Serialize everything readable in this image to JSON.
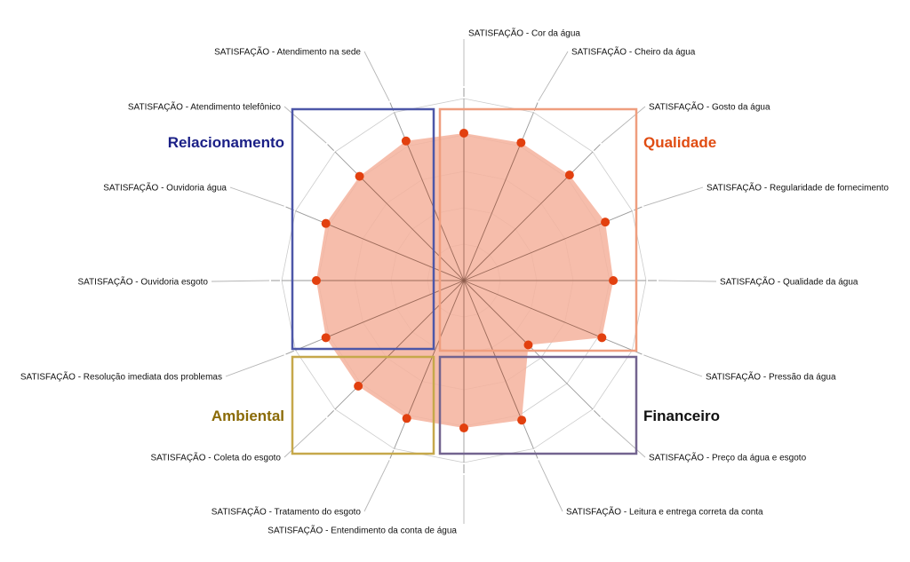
{
  "chart_data": {
    "type": "radar",
    "title": "",
    "rlim": [
      0,
      10
    ],
    "grid_rings": 5,
    "categories": [
      "SATISFAÇÃO - Cor da água",
      "SATISFAÇÃO - Cheiro da água",
      "SATISFAÇÃO - Gosto da água",
      "SATISFAÇÃO - Regularidade de fornecimento",
      "SATISFAÇÃO - Qualidade da água",
      "SATISFAÇÃO - Pressão da água",
      "SATISFAÇÃO - Preço da água e esgoto",
      "SATISFAÇÃO - Leitura e entrega correta da conta",
      "SATISFAÇÃO - Entendimento da conta de água",
      "SATISFAÇÃO - Tratamento do esgoto",
      "SATISFAÇÃO - Coleta do esgoto",
      "SATISFAÇÃO - Resolução imediata dos problemas",
      "SATISFAÇÃO - Ouvidoria esgoto",
      "SATISFAÇÃO - Ouvidoria água",
      "SATISFAÇÃO - Atendimento telefônico",
      "SATISFAÇÃO - Atendimento na sede"
    ],
    "values": [
      8.1,
      8.2,
      8.2,
      8.4,
      8.2,
      8.2,
      5.0,
      8.3,
      8.1,
      8.2,
      8.2,
      8.2,
      8.1,
      8.2,
      8.1,
      8.3
    ],
    "series_color": "#f4b29c",
    "point_color": "#e2400f",
    "groups": [
      {
        "name": "Relacionamento",
        "color": "#1a1f86",
        "border": "#4d57a8"
      },
      {
        "name": "Qualidade",
        "color": "#e04c12",
        "border": "#ef9e7e"
      },
      {
        "name": "Ambiental",
        "color": "#8a6a06",
        "border": "#c6a84b"
      },
      {
        "name": "Financeiro",
        "color": "#111111",
        "border": "#73648f"
      }
    ]
  }
}
